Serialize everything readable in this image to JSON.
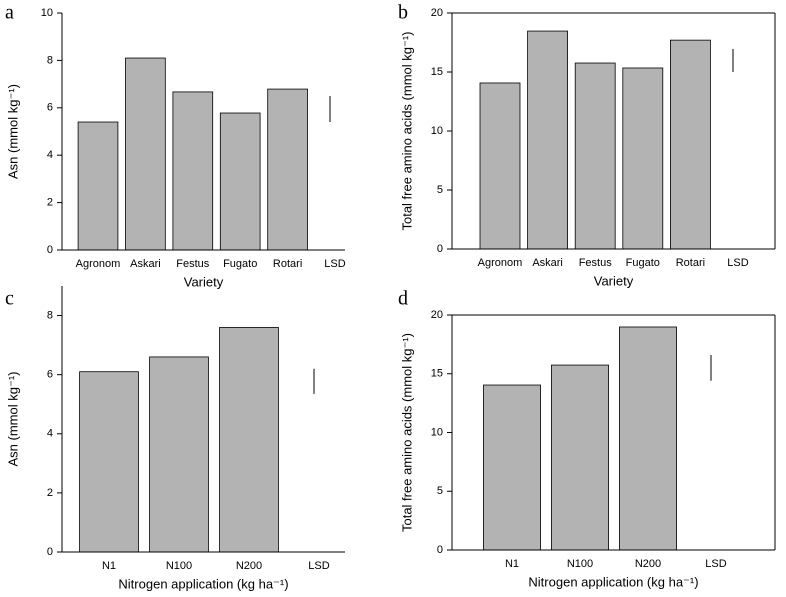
{
  "chart_data": [
    {
      "type": "bar",
      "panel_label": "a",
      "y_label": "Asn (mmol kg⁻¹)",
      "x_label": "Variety",
      "categories": [
        "Agronom",
        "Askari",
        "Festus",
        "Fugato",
        "Rotari",
        "LSD"
      ],
      "values": [
        5.4,
        8.1,
        6.67,
        5.78,
        6.79,
        null
      ],
      "lsd": [
        5.4,
        6.5
      ],
      "color": "#b3b3b3",
      "ylim": [
        0,
        10
      ],
      "yticks": [
        0,
        2,
        4,
        6,
        8,
        10
      ],
      "frame": "axes"
    },
    {
      "type": "bar",
      "panel_label": "b",
      "y_label": "Total free amino acids (mmol kg⁻¹)",
      "x_label": "Variety",
      "categories": [
        "Agronom",
        "Askari",
        "Festus",
        "Fugato",
        "Rotari",
        "LSD"
      ],
      "values": [
        14.07,
        18.47,
        15.76,
        15.34,
        17.7,
        null
      ],
      "lsd": [
        15.0,
        16.95
      ],
      "color": "#b3b3b3",
      "ylim": [
        0,
        20
      ],
      "yticks": [
        0,
        5,
        10,
        15,
        20
      ],
      "frame": "box"
    },
    {
      "type": "bar",
      "panel_label": "c",
      "y_label": "Asn (mmol kg⁻¹)",
      "x_label": "Nitrogen application (kg ha⁻¹)",
      "categories": [
        "N1",
        "N100",
        "N200",
        "LSD"
      ],
      "values": [
        6.1,
        6.6,
        7.6,
        null
      ],
      "lsd": [
        5.35,
        6.2
      ],
      "color": "#b3b3b3",
      "ylim": [
        0,
        9
      ],
      "yticks": [
        0,
        2,
        4,
        6,
        8
      ],
      "frame": "axes"
    },
    {
      "type": "bar",
      "panel_label": "d",
      "y_label": "Total free amino acids (mmol kg⁻¹)",
      "x_label": "Nitrogen application (kg ha⁻¹)",
      "categories": [
        "N1",
        "N100",
        "N200",
        "LSD"
      ],
      "values": [
        14.04,
        15.74,
        18.98,
        null
      ],
      "lsd": [
        14.4,
        16.6
      ],
      "color": "#b3b3b3",
      "ylim": [
        0,
        20
      ],
      "yticks": [
        0,
        5,
        10,
        15,
        20
      ],
      "frame": "box"
    }
  ]
}
